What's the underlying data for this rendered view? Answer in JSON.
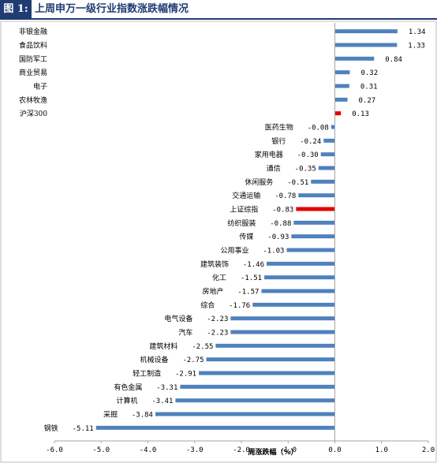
{
  "figure": {
    "label": "图 1:",
    "title": "上周申万一级行业指数涨跌幅情况"
  },
  "chart_data": {
    "type": "bar",
    "orientation": "horizontal",
    "categories": [
      "非银金融",
      "食品饮料",
      "国防军工",
      "商业贸易",
      "电子",
      "农林牧渔",
      "沪深300",
      "医药生物",
      "银行",
      "家用电器",
      "通信",
      "休闲服务",
      "交通运输",
      "上证综指",
      "纺织服装",
      "传媒",
      "公用事业",
      "建筑装饰",
      "化工",
      "房地产",
      "综合",
      "电气设备",
      "汽车",
      "建筑材料",
      "机械设备",
      "轻工制造",
      "有色金属",
      "计算机",
      "采掘",
      "钢铁"
    ],
    "values": [
      1.34,
      1.33,
      0.84,
      0.32,
      0.31,
      0.27,
      0.13,
      -0.08,
      -0.24,
      -0.3,
      -0.35,
      -0.51,
      -0.78,
      -0.83,
      -0.88,
      -0.93,
      -1.03,
      -1.46,
      -1.51,
      -1.57,
      -1.76,
      -2.23,
      -2.23,
      -2.55,
      -2.75,
      -2.91,
      -3.31,
      -3.41,
      -3.84,
      -5.11
    ],
    "value_labels": [
      "1.34",
      "1.33",
      "0.84",
      "0.32",
      "0.31",
      "0.27",
      "0.13",
      "-0.08",
      "-0.24",
      "-0.30",
      "-0.35",
      "-0.51",
      "-0.78",
      "-0.83",
      "-0.88",
      "-0.93",
      "-1.03",
      "-1.46",
      "-1.51",
      "-1.57",
      "-1.76",
      "-2.23",
      "-2.23",
      "-2.55",
      "-2.75",
      "-2.91",
      "-3.31",
      "-3.41",
      "-3.84",
      "-5.11"
    ],
    "highlight": [
      "沪深300",
      "上证综指"
    ],
    "colors": {
      "default": "#4f81bd",
      "highlight": "#e60000"
    },
    "xlim": [
      -6.0,
      2.0
    ],
    "xticks": [
      -6.0,
      -5.0,
      -4.0,
      -3.0,
      -2.0,
      -1.0,
      0.0,
      1.0,
      2.0
    ],
    "xtick_labels": [
      "-6.0",
      "-5.0",
      "-4.0",
      "-3.0",
      "-2.0",
      "-1.0",
      "0.0",
      "1.0",
      "2.0"
    ],
    "xlabel": "周涨跌幅（%）",
    "grid": false,
    "legend": "none"
  }
}
